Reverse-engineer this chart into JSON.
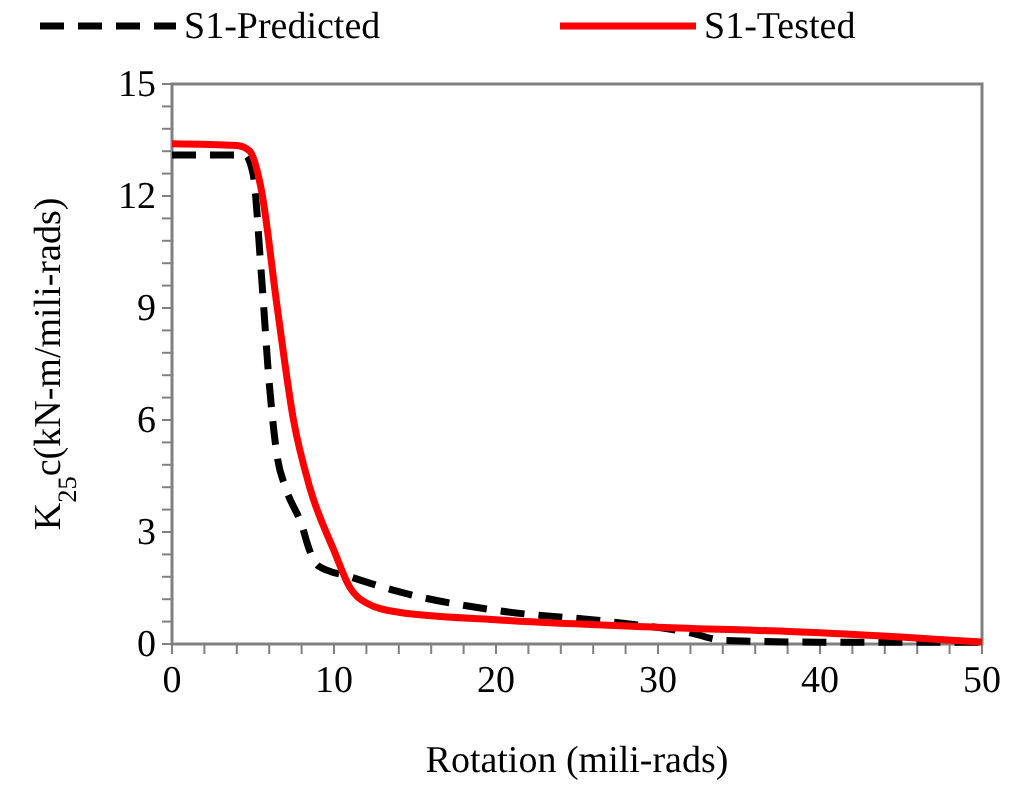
{
  "chart_data": {
    "type": "line",
    "xlabel": "Rotation (mili-rads)",
    "ylabel": "K$_{25}$c(kN-m/mili-rads)",
    "xlim": [
      0,
      50
    ],
    "ylim": [
      0,
      15
    ],
    "xticks": [
      0,
      {
        "value": 2,
        "label": null
      },
      {
        "value": 4,
        "label": null
      },
      {
        "value": 6,
        "label": null
      },
      {
        "value": 8,
        "label": null
      },
      10,
      {
        "value": 12,
        "label": null
      },
      {
        "value": 14,
        "label": null
      },
      {
        "value": 16,
        "label": null
      },
      {
        "value": 18,
        "label": null
      },
      20,
      {
        "value": 22,
        "label": null
      },
      {
        "value": 24,
        "label": null
      },
      {
        "value": 26,
        "label": null
      },
      {
        "value": 28,
        "label": null
      },
      30,
      {
        "value": 32,
        "label": null
      },
      {
        "value": 34,
        "label": null
      },
      {
        "value": 36,
        "label": null
      },
      {
        "value": 38,
        "label": null
      },
      40,
      {
        "value": 42,
        "label": null
      },
      {
        "value": 44,
        "label": null
      },
      {
        "value": 46,
        "label": null
      },
      {
        "value": 48,
        "label": null
      },
      50
    ],
    "yticks": [
      0,
      {
        "value": 0.6,
        "label": null
      },
      {
        "value": 1.2,
        "label": null
      },
      {
        "value": 1.8,
        "label": null
      },
      {
        "value": 2.4,
        "label": null
      },
      3,
      {
        "value": 3.6,
        "label": null
      },
      {
        "value": 4.2,
        "label": null
      },
      {
        "value": 4.8,
        "label": null
      },
      {
        "value": 5.4,
        "label": null
      },
      6,
      {
        "value": 6.6,
        "label": null
      },
      {
        "value": 7.2,
        "label": null
      },
      {
        "value": 7.8,
        "label": null
      },
      {
        "value": 8.4,
        "label": null
      },
      9,
      {
        "value": 9.6,
        "label": null
      },
      {
        "value": 10.2,
        "label": null
      },
      {
        "value": 10.8,
        "label": null
      },
      {
        "value": 11.4,
        "label": null
      },
      12,
      {
        "value": 12.6,
        "label": null
      },
      {
        "value": 13.2,
        "label": null
      },
      {
        "value": 13.8,
        "label": null
      },
      {
        "value": 14.4,
        "label": null
      },
      15
    ],
    "grid": false,
    "legend": "top",
    "series": [
      {
        "name": "S1-Predicted",
        "color": "#000000",
        "line_style": "dashed",
        "x": [
          0,
          4.5,
          5,
          5.5,
          6,
          6.5,
          7,
          8,
          8.5,
          9,
          11,
          14,
          20,
          27,
          32,
          34,
          40,
          50
        ],
        "values": [
          13.1,
          13.1,
          12.6,
          10,
          7,
          5,
          4.2,
          3.2,
          2.5,
          2.1,
          1.8,
          1.4,
          0.9,
          0.6,
          0.3,
          0.1,
          0.05,
          0.05
        ]
      },
      {
        "name": "S1-Tested",
        "color": "#ff0000",
        "line_style": "solid",
        "x": [
          0,
          4,
          4.8,
          5.5,
          6.5,
          7.5,
          8.5,
          10,
          11,
          12,
          14,
          20,
          30,
          40,
          50
        ],
        "values": [
          13.4,
          13.35,
          13.2,
          12.2,
          9,
          6,
          4.2,
          2.5,
          1.5,
          1.1,
          0.85,
          0.65,
          0.45,
          0.3,
          0.05
        ]
      }
    ]
  }
}
